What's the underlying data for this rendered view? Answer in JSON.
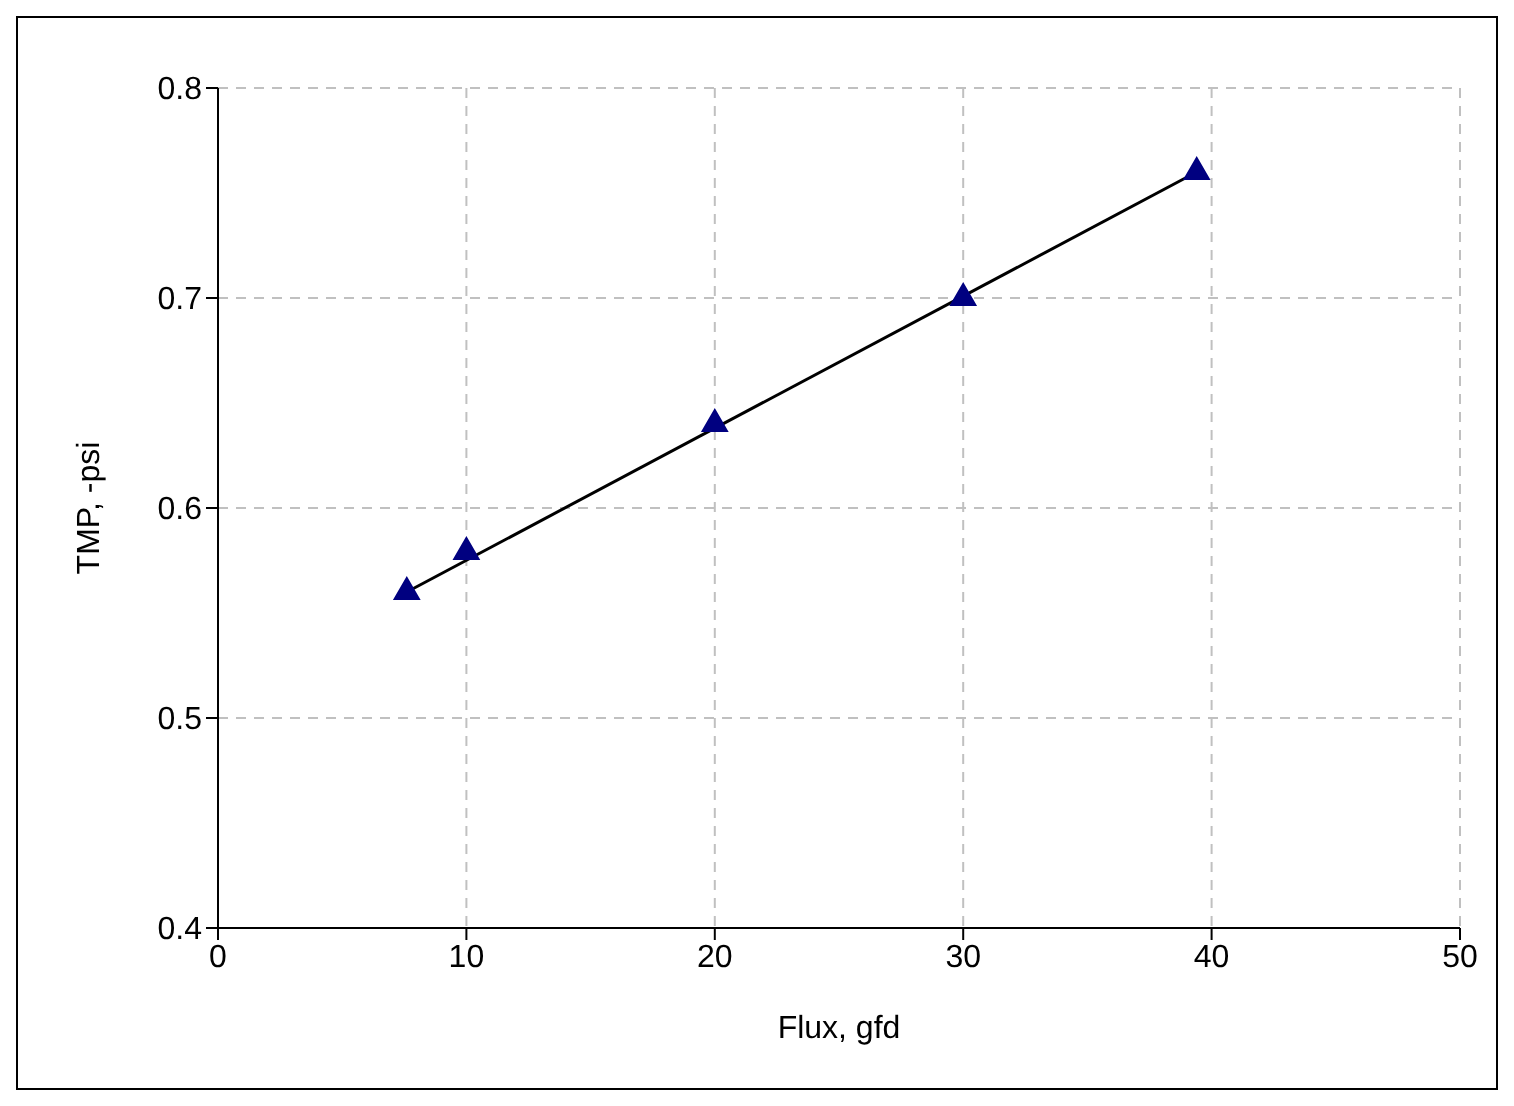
{
  "chart_data": {
    "type": "scatter",
    "xlabel": "Flux, gfd",
    "ylabel": "TMP, -psi",
    "xlim": [
      0,
      50
    ],
    "xticks": [
      0,
      10,
      20,
      30,
      40,
      50
    ],
    "ylim": [
      0.4,
      0.8
    ],
    "yticks": [
      0.4,
      0.5,
      0.6,
      0.7,
      0.8
    ],
    "grid": true,
    "marker": "triangle",
    "series": [
      {
        "color": "#000080",
        "x": [
          7.6,
          10,
          20,
          30,
          39.4
        ],
        "values": [
          0.56,
          0.579,
          0.64,
          0.7,
          0.76
        ]
      },
      {
        "type": "line",
        "color": "#000000",
        "marker": "none",
        "x": [
          7.6,
          39.4
        ],
        "values": [
          0.56,
          0.76
        ]
      }
    ]
  }
}
